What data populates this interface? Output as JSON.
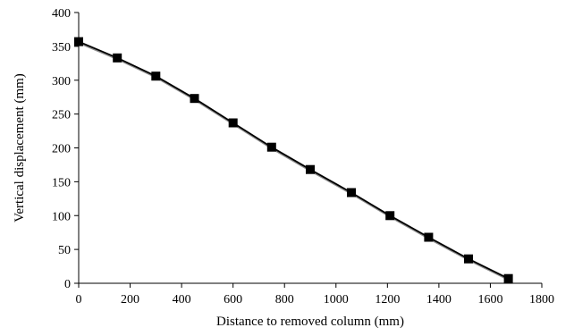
{
  "chart_data": {
    "type": "line",
    "title": "",
    "xlabel": "Distance to removed column (mm)",
    "ylabel": "Vertical displacement   (mm)",
    "xlim": [
      0,
      1800
    ],
    "ylim": [
      0,
      400
    ],
    "xticks": [
      0,
      200,
      400,
      600,
      800,
      1000,
      1200,
      1400,
      1600,
      1800
    ],
    "yticks": [
      0,
      50,
      100,
      150,
      200,
      250,
      300,
      350,
      400
    ],
    "grid": false,
    "legend": "none",
    "series": [
      {
        "marker": "square",
        "color": "#000000",
        "x": [
          0,
          150,
          300,
          450,
          600,
          750,
          900,
          1060,
          1210,
          1360,
          1515,
          1670
        ],
        "y": [
          357,
          333,
          306,
          273,
          237,
          201,
          168,
          134,
          100,
          68,
          36,
          7
        ]
      },
      {
        "marker": "none",
        "color": "#8c8c8c",
        "x": [
          0,
          150,
          300,
          450,
          600,
          750,
          900,
          1060,
          1210,
          1360,
          1515,
          1670
        ],
        "y": [
          355,
          331,
          304,
          271,
          235,
          199,
          166,
          132,
          98,
          66,
          34,
          5
        ]
      }
    ]
  }
}
